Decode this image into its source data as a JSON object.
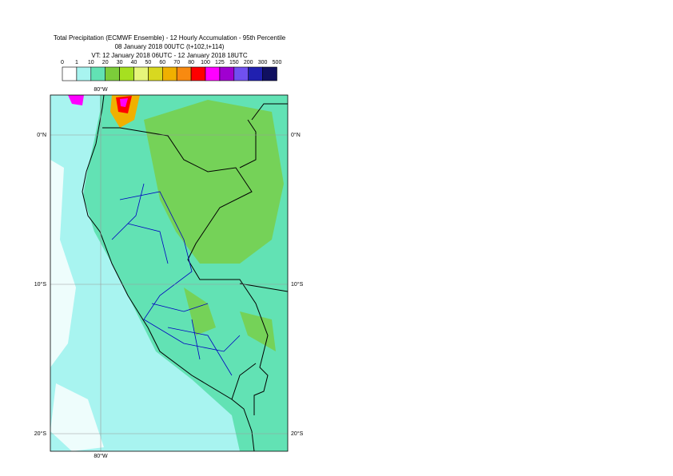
{
  "header": {
    "lines": [
      "Total Precipitation (ECMWF Ensemble) - 12 Hourly Accumulation - 95th Percentile",
      "08 January 2018 00UTC (t+102,t+114)",
      "VT: 12 January 2018 06UTC - 12 January 2018 18UTC"
    ]
  },
  "legend": {
    "labels": [
      "0",
      "1",
      "10",
      "20",
      "30",
      "40",
      "50",
      "60",
      "70",
      "80",
      "100",
      "125",
      "150",
      "200",
      "300",
      "500"
    ],
    "colors": [
      "#ffffff",
      "#a8f4f0",
      "#62e2b4",
      "#7ccc3a",
      "#a6e020",
      "#e6f57a",
      "#d8d820",
      "#f0b000",
      "#f88a10",
      "#ff0000",
      "#ff00ff",
      "#a000d0",
      "#7050f0",
      "#2020b0",
      "#101060"
    ]
  },
  "map": {
    "lon_labels": [
      "80°W",
      "80°W"
    ],
    "lat_labels": [
      "0°N",
      "0°N",
      "10°S",
      "10°S",
      "20°S",
      "20°S"
    ]
  }
}
